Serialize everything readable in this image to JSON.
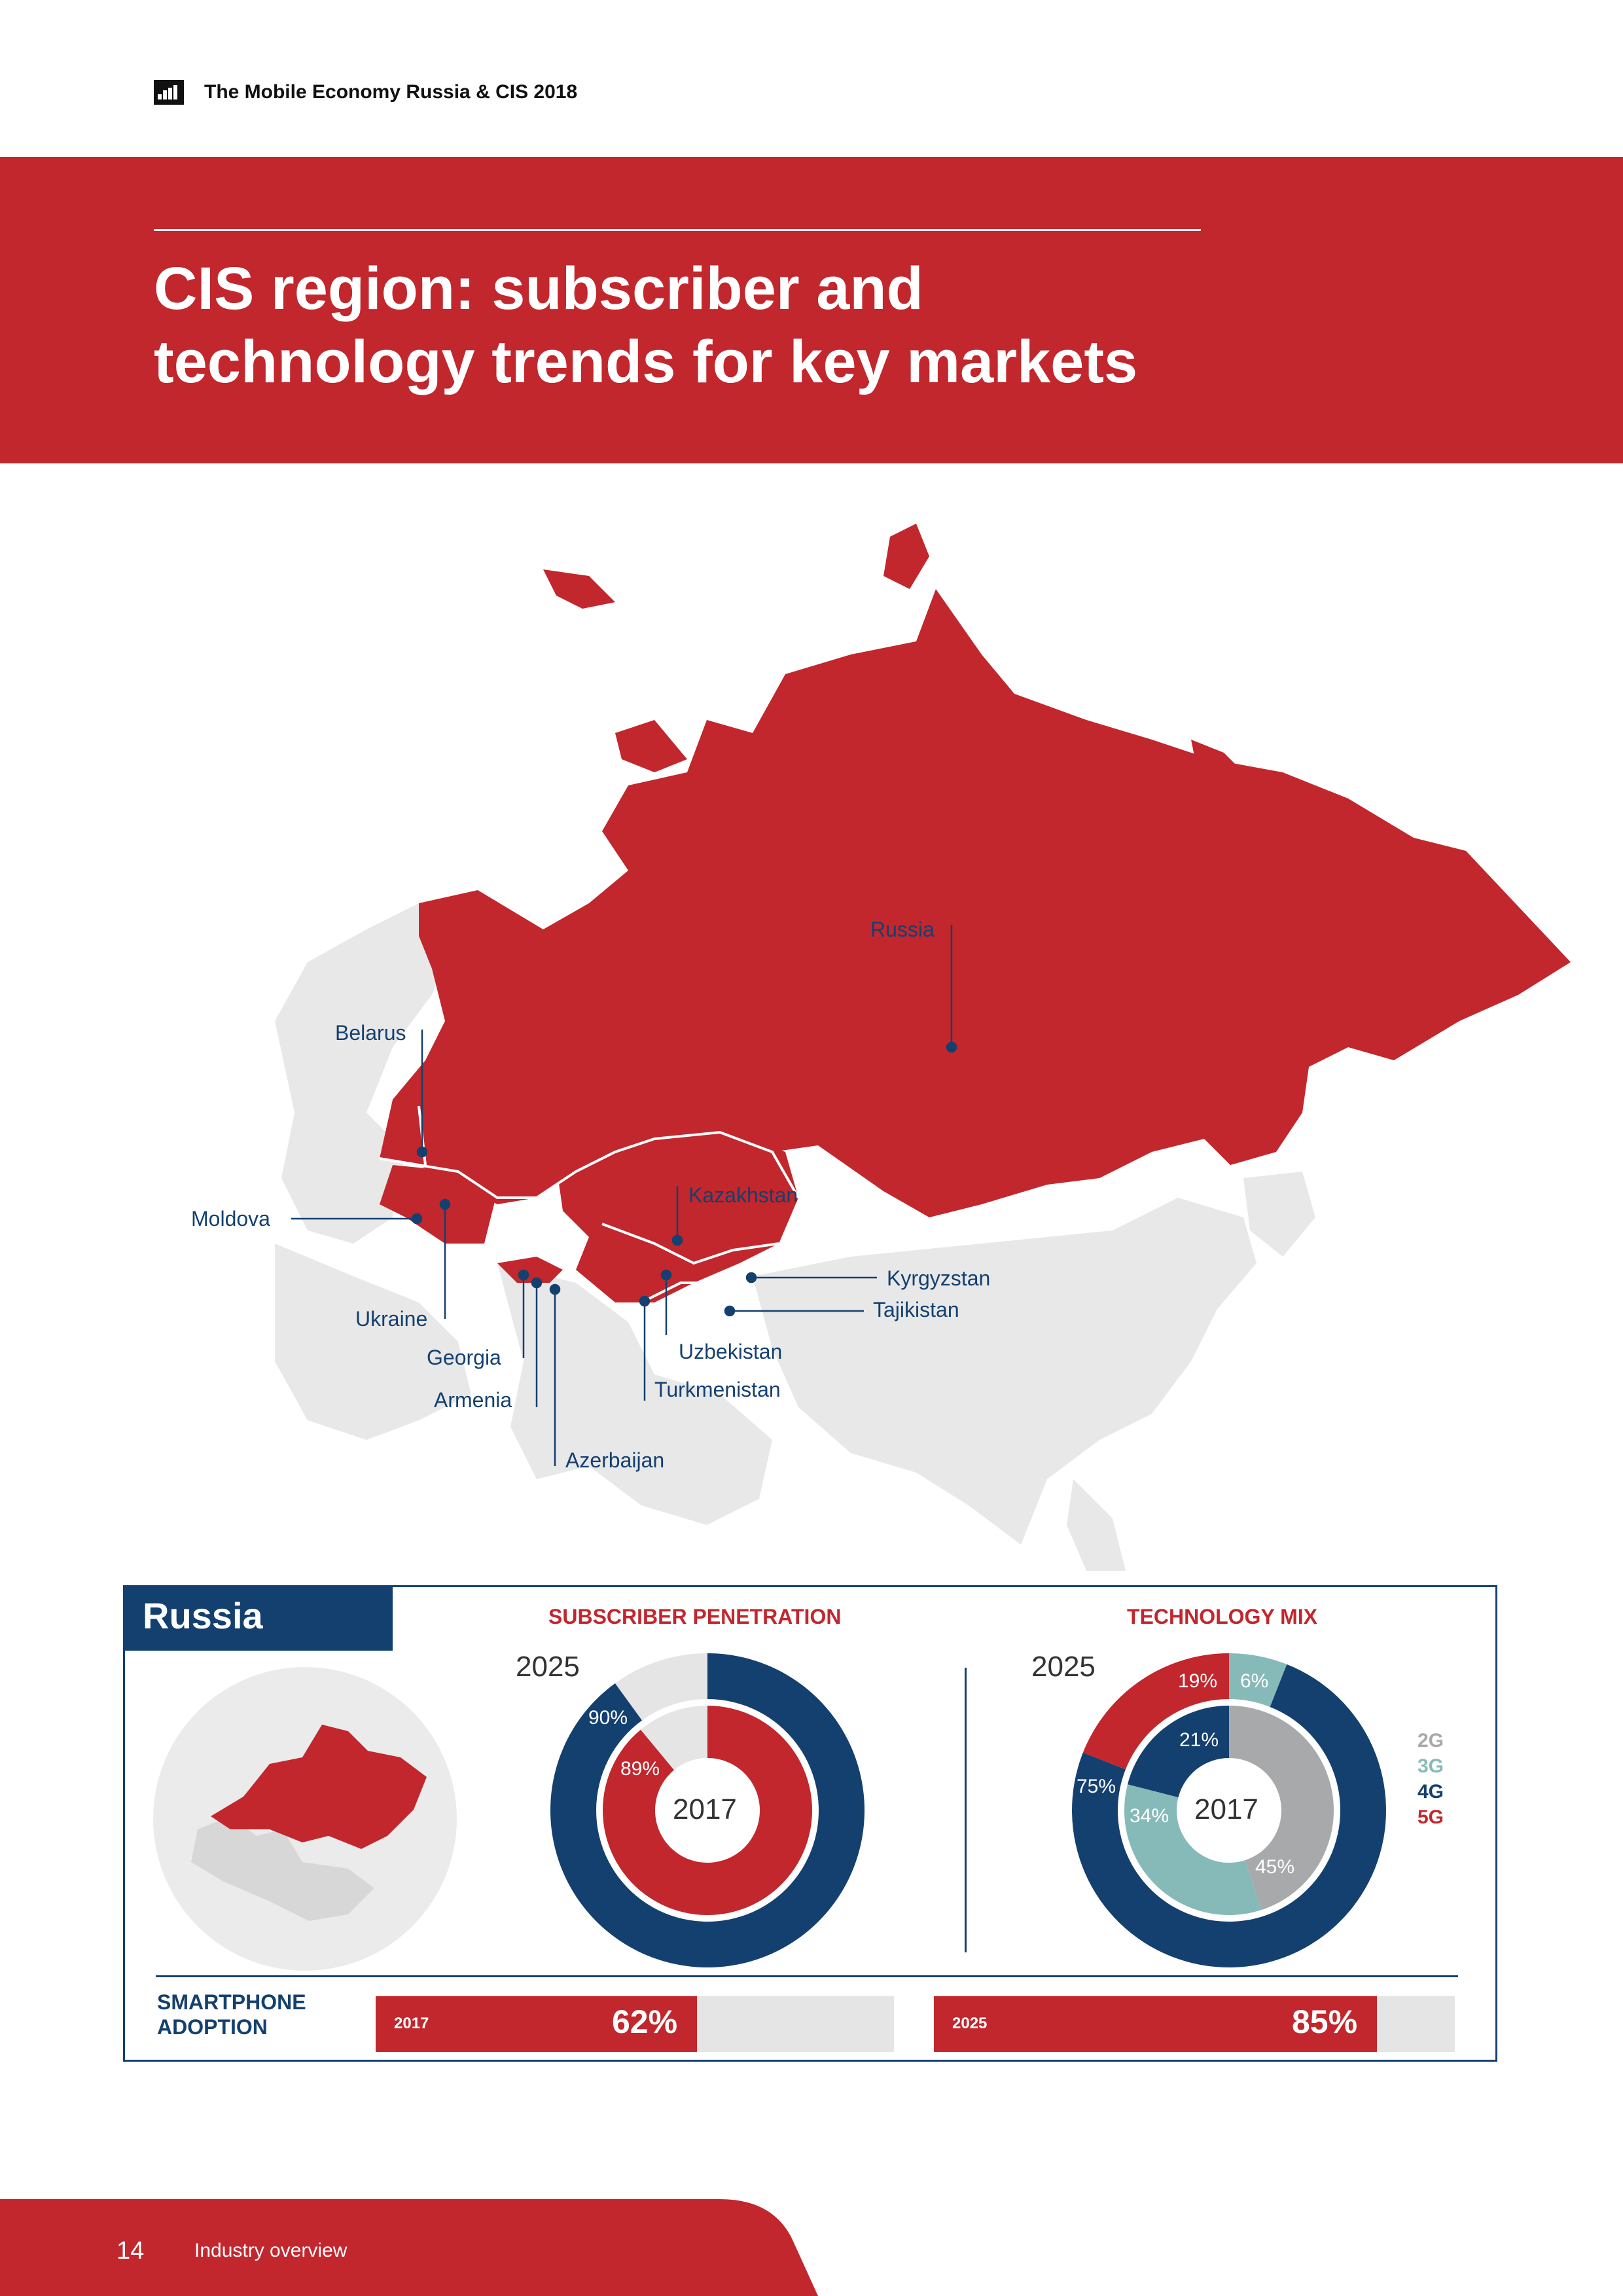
{
  "header": {
    "report_title": "The Mobile Economy Russia & CIS 2018",
    "logo_icon": "gsma-logo-icon"
  },
  "page_title_line1": "CIS region: subscriber and",
  "page_title_line2": "technology trends for key markets",
  "map": {
    "labels": {
      "russia": "Russia",
      "belarus": "Belarus",
      "moldova": "Moldova",
      "ukraine": "Ukraine",
      "georgia": "Georgia",
      "armenia": "Armenia",
      "azerbaijan": "Azerbaijan",
      "kazakhstan": "Kazakhstan",
      "kyrgyzstan": "Kyrgyzstan",
      "tajikistan": "Tajikistan",
      "uzbekistan": "Uzbekistan",
      "turkmenistan": "Turkmenistan"
    },
    "colors": {
      "cis": "#c1272d",
      "other": "#e8e8e9",
      "marker": "#14406f"
    }
  },
  "panel": {
    "country": "Russia",
    "subscriber_penetration": {
      "title": "SUBSCRIBER PENETRATION",
      "outer_year": "2025",
      "inner_year": "2017",
      "outer_label": "90%",
      "inner_label": "89%"
    },
    "technology_mix": {
      "title": "TECHNOLOGY MIX",
      "outer_year": "2025",
      "inner_year": "2017",
      "outer_labels": {
        "g5": "19%",
        "g3": "6%",
        "g4": "75%"
      },
      "inner_labels": {
        "g4": "21%",
        "g3": "34%",
        "g2": "45%"
      },
      "legend": {
        "g2": "2G",
        "g3": "3G",
        "g4": "4G",
        "g5": "5G"
      }
    },
    "smartphone_adoption": {
      "title": "SMARTPHONE ADOPTION",
      "bar_2017": {
        "year": "2017",
        "label": "62%"
      },
      "bar_2025": {
        "year": "2025",
        "label": "85%"
      }
    }
  },
  "chart_data": [
    {
      "type": "pie",
      "title": "SUBSCRIBER PENETRATION",
      "series": [
        {
          "name": "2025",
          "values": [
            90,
            10
          ]
        },
        {
          "name": "2017",
          "values": [
            89,
            11
          ]
        }
      ]
    },
    {
      "type": "pie",
      "title": "TECHNOLOGY MIX",
      "categories": [
        "2G",
        "3G",
        "4G",
        "5G"
      ],
      "series": [
        {
          "name": "2025",
          "values": [
            0,
            6,
            75,
            19
          ]
        },
        {
          "name": "2017",
          "values": [
            45,
            34,
            21,
            0
          ]
        }
      ],
      "colors": {
        "2G": "#a8a9ab",
        "3G": "#86bab8",
        "4G": "#14406f",
        "5G": "#c1272d"
      }
    },
    {
      "type": "bar",
      "title": "SMARTPHONE ADOPTION",
      "categories": [
        "2017",
        "2025"
      ],
      "values": [
        62,
        85
      ],
      "ylim": [
        0,
        100
      ]
    }
  ],
  "footer": {
    "page_number": "14",
    "section": "Industry overview"
  }
}
